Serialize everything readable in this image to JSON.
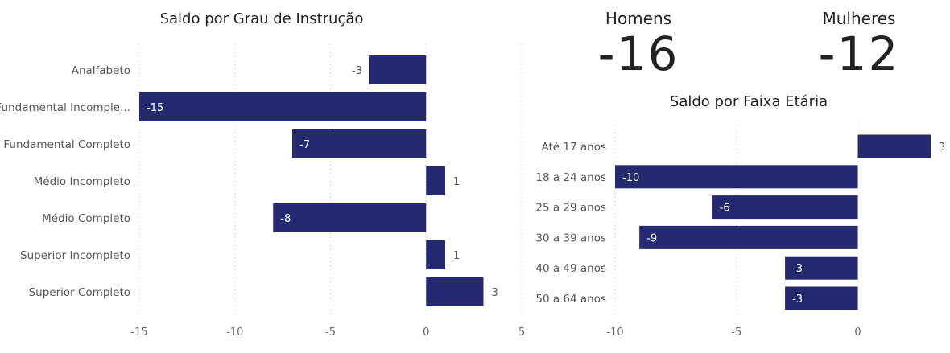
{
  "kpis": {
    "homens": {
      "label": "Homens",
      "value": "-16"
    },
    "mulheres": {
      "label": "Mulheres",
      "value": "-12"
    }
  },
  "chart_data": [
    {
      "type": "bar",
      "orientation": "horizontal",
      "title": "Saldo por Grau de Instrução",
      "categories": [
        "Analfabeto",
        "Fundamental Incomple...",
        "Fundamental Completo",
        "Médio Incompleto",
        "Médio Completo",
        "Superior Incompleto",
        "Superior Completo"
      ],
      "values": [
        -3,
        -15,
        -7,
        1,
        -8,
        1,
        3
      ],
      "xlim": [
        -15,
        5
      ],
      "xticks": [
        -15,
        -10,
        -5,
        0,
        5
      ],
      "grid": true,
      "color": "#252970"
    },
    {
      "type": "bar",
      "orientation": "horizontal",
      "title": "Saldo por Faixa Etária",
      "categories": [
        "Até 17 anos",
        "18 a 24 anos",
        "25 a 29 anos",
        "30 a 39 anos",
        "40 a 49 anos",
        "50 a 64 anos"
      ],
      "values": [
        3,
        -10,
        -6,
        -9,
        -3,
        -3
      ],
      "xlim": [
        -10,
        3
      ],
      "xticks": [
        -10,
        -5,
        0
      ],
      "grid": true,
      "color": "#252970"
    }
  ]
}
